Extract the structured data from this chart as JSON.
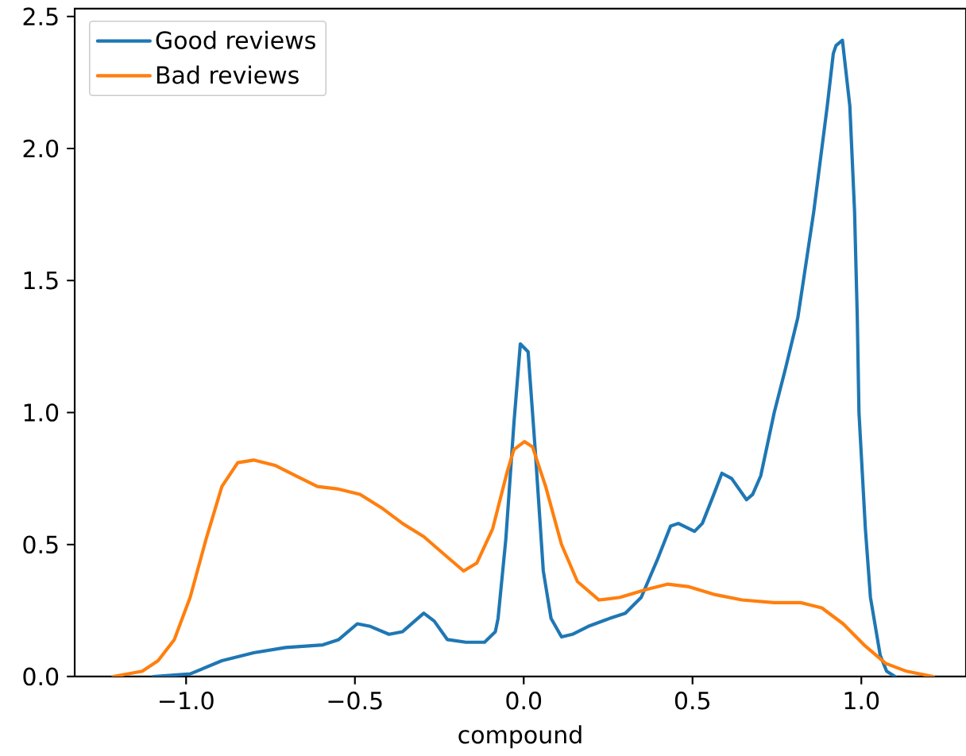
{
  "chart_data": {
    "type": "line",
    "xlabel": "compound",
    "legend": "top left",
    "xlim": [
      -1.33,
      1.31
    ],
    "ylim": [
      0,
      2.53
    ],
    "xticks": [
      {
        "value": -1.0,
        "label": "−1.0"
      },
      {
        "value": -0.5,
        "label": "−0.5"
      },
      {
        "value": 0,
        "label": "0.0"
      },
      {
        "value": 0.5,
        "label": "0.5"
      },
      {
        "value": 1.0,
        "label": "1.0"
      }
    ],
    "yticks": [
      {
        "value": 0,
        "label": "0.0"
      },
      {
        "value": 0.5,
        "label": "0.5"
      },
      {
        "value": 1.0,
        "label": "1.0"
      },
      {
        "value": 1.5,
        "label": "1.5"
      },
      {
        "value": 2.0,
        "label": "2.0"
      },
      {
        "value": 2.5,
        "label": "2.5"
      }
    ],
    "series": [
      {
        "name": "Good reviews",
        "color": "#1f77b4",
        "x": [
          -1.098,
          -0.988,
          -0.894,
          -0.8,
          -0.705,
          -0.595,
          -0.548,
          -0.493,
          -0.454,
          -0.399,
          -0.359,
          -0.296,
          -0.265,
          -0.226,
          -0.171,
          -0.116,
          -0.084,
          -0.076,
          -0.053,
          -0.029,
          -0.01,
          0.013,
          0.034,
          0.058,
          0.081,
          0.112,
          0.144,
          0.191,
          0.254,
          0.301,
          0.348,
          0.395,
          0.435,
          0.458,
          0.506,
          0.529,
          0.56,
          0.587,
          0.616,
          0.66,
          0.678,
          0.702,
          0.742,
          0.776,
          0.812,
          0.859,
          0.899,
          0.917,
          0.925,
          0.944,
          0.966,
          0.98,
          0.988,
          0.993,
          1.012,
          1.027,
          1.056,
          1.075,
          1.1
        ],
        "values": [
          0,
          0.01,
          0.06,
          0.09,
          0.11,
          0.12,
          0.14,
          0.2,
          0.19,
          0.16,
          0.17,
          0.24,
          0.21,
          0.14,
          0.13,
          0.13,
          0.17,
          0.22,
          0.52,
          0.96,
          1.26,
          1.23,
          0.86,
          0.4,
          0.22,
          0.15,
          0.16,
          0.19,
          0.22,
          0.24,
          0.3,
          0.44,
          0.57,
          0.58,
          0.55,
          0.58,
          0.68,
          0.77,
          0.75,
          0.67,
          0.69,
          0.76,
          1.0,
          1.17,
          1.36,
          1.76,
          2.16,
          2.36,
          2.39,
          2.41,
          2.16,
          1.76,
          1.36,
          1.0,
          0.56,
          0.3,
          0.08,
          0.02,
          0
        ]
      },
      {
        "name": "Bad reviews",
        "color": "#ff7f0e",
        "x": [
          -1.216,
          -1.13,
          -1.083,
          -1.035,
          -0.988,
          -0.941,
          -0.894,
          -0.847,
          -0.8,
          -0.737,
          -0.674,
          -0.611,
          -0.548,
          -0.485,
          -0.422,
          -0.359,
          -0.296,
          -0.233,
          -0.178,
          -0.139,
          -0.092,
          -0.048,
          -0.029,
          0.002,
          0.026,
          0.065,
          0.112,
          0.159,
          0.223,
          0.285,
          0.364,
          0.427,
          0.49,
          0.568,
          0.647,
          0.742,
          0.82,
          0.883,
          0.946,
          1.008,
          1.072,
          1.134,
          1.213
        ],
        "values": [
          0,
          0.02,
          0.06,
          0.14,
          0.3,
          0.52,
          0.72,
          0.81,
          0.82,
          0.8,
          0.76,
          0.72,
          0.71,
          0.69,
          0.64,
          0.58,
          0.53,
          0.46,
          0.4,
          0.43,
          0.56,
          0.78,
          0.86,
          0.89,
          0.87,
          0.72,
          0.5,
          0.36,
          0.29,
          0.3,
          0.33,
          0.35,
          0.34,
          0.31,
          0.29,
          0.28,
          0.28,
          0.26,
          0.2,
          0.12,
          0.05,
          0.02,
          0
        ]
      }
    ]
  }
}
